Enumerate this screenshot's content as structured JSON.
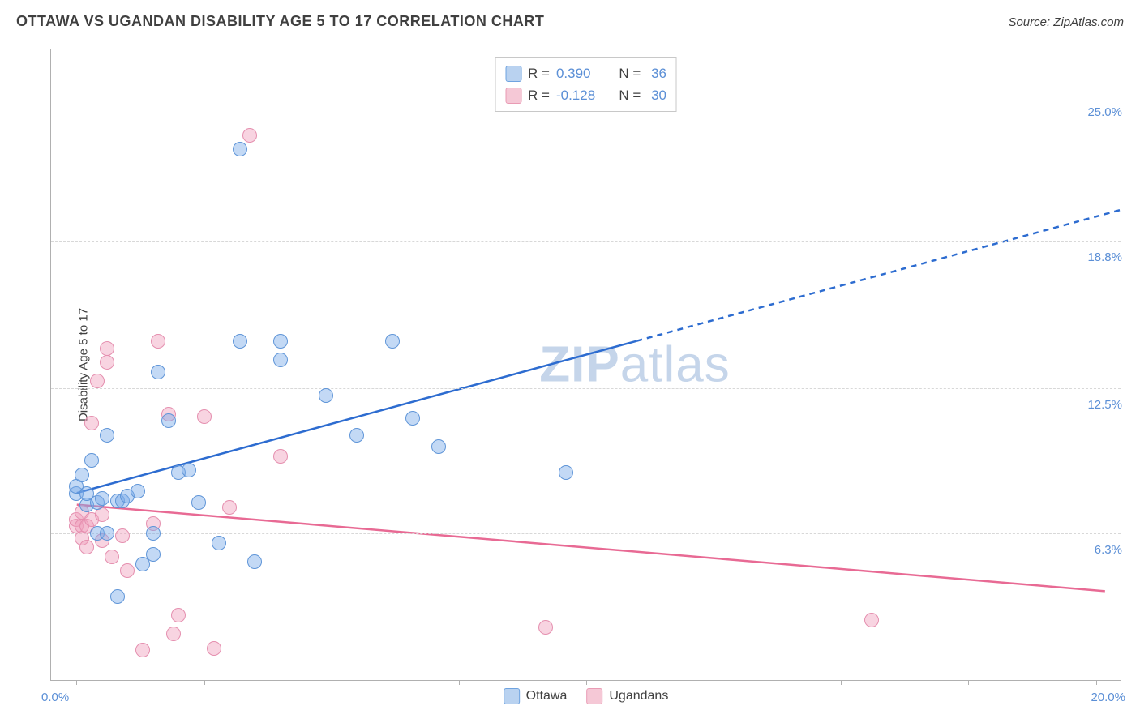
{
  "chart": {
    "title": "OTTAWA VS UGANDAN DISABILITY AGE 5 TO 17 CORRELATION CHART",
    "source": "Source: ZipAtlas.com",
    "y_axis_title": "Disability Age 5 to 17",
    "watermark_bold": "ZIP",
    "watermark_rest": "atlas",
    "title_fontsize": 18,
    "label_fontsize": 15,
    "background_color": "#ffffff",
    "grid_color": "#d8d8d8",
    "axis_color": "#b0b0b0",
    "tick_label_color": "#5b8fd6",
    "x_range": [
      -0.5,
      20.5
    ],
    "y_range": [
      0.0,
      27.0
    ],
    "x_min_label": "0.0%",
    "x_max_label": "20.0%",
    "x_tick_positions": [
      0,
      2.5,
      5,
      7.5,
      10,
      12.5,
      15,
      17.5,
      20
    ],
    "y_gridlines": [
      {
        "value": 6.3,
        "label": "6.3%"
      },
      {
        "value": 12.5,
        "label": "12.5%"
      },
      {
        "value": 18.8,
        "label": "18.8%"
      },
      {
        "value": 25.0,
        "label": "25.0%"
      }
    ],
    "trend_lines": {
      "ottawa": {
        "color": "#2d6cd0",
        "width": 2.5,
        "solid": {
          "x1": 0.0,
          "y1": 8.0,
          "x2": 11.0,
          "y2": 14.5
        },
        "dashed": {
          "x1": 11.0,
          "y1": 14.5,
          "x2": 20.5,
          "y2": 20.1
        }
      },
      "ugandans": {
        "color": "#e86a94",
        "width": 2.5,
        "solid": {
          "x1": 0.0,
          "y1": 7.5,
          "x2": 20.2,
          "y2": 3.8
        }
      }
    },
    "stats_legend": {
      "rows": [
        {
          "swatch_fill": "#b9d2f0",
          "swatch_stroke": "#6fa3e0",
          "r_label": "R =",
          "r_value": "0.390",
          "n_label": "N =",
          "n_value": "36"
        },
        {
          "swatch_fill": "#f5c8d6",
          "swatch_stroke": "#e99bb4",
          "r_label": "R =",
          "r_value": "-0.128",
          "n_label": "N =",
          "n_value": "30"
        }
      ]
    },
    "series_legend": [
      {
        "swatch_fill": "#b9d2f0",
        "swatch_stroke": "#6fa3e0",
        "label": "Ottawa"
      },
      {
        "swatch_fill": "#f5c8d6",
        "swatch_stroke": "#e99bb4",
        "label": "Ugandans"
      }
    ],
    "point_style": {
      "radius": 9,
      "stroke_width": 1.5,
      "ottawa_fill": "rgba(121,171,232,0.45)",
      "ottawa_stroke": "#5f95d8",
      "ugandans_fill": "rgba(240,160,188,0.45)",
      "ugandans_stroke": "#e58faf"
    },
    "series": {
      "ottawa": [
        [
          0.0,
          8.0
        ],
        [
          0.0,
          8.3
        ],
        [
          0.1,
          8.8
        ],
        [
          0.2,
          7.5
        ],
        [
          0.2,
          8.0
        ],
        [
          0.3,
          9.4
        ],
        [
          0.4,
          6.3
        ],
        [
          0.4,
          7.6
        ],
        [
          0.5,
          7.8
        ],
        [
          0.6,
          6.3
        ],
        [
          0.6,
          10.5
        ],
        [
          0.8,
          3.6
        ],
        [
          0.8,
          7.7
        ],
        [
          0.9,
          7.7
        ],
        [
          1.0,
          7.9
        ],
        [
          1.2,
          8.1
        ],
        [
          1.3,
          5.0
        ],
        [
          1.5,
          6.3
        ],
        [
          1.5,
          5.4
        ],
        [
          1.6,
          13.2
        ],
        [
          1.8,
          11.1
        ],
        [
          2.0,
          8.9
        ],
        [
          2.2,
          9.0
        ],
        [
          2.4,
          7.6
        ],
        [
          2.8,
          5.9
        ],
        [
          3.2,
          14.5
        ],
        [
          3.2,
          22.7
        ],
        [
          3.5,
          5.1
        ],
        [
          4.0,
          14.5
        ],
        [
          4.0,
          13.7
        ],
        [
          4.9,
          12.2
        ],
        [
          5.5,
          10.5
        ],
        [
          6.2,
          14.5
        ],
        [
          6.6,
          11.2
        ],
        [
          7.1,
          10.0
        ],
        [
          9.6,
          8.9
        ]
      ],
      "ugandans": [
        [
          0.0,
          6.6
        ],
        [
          0.0,
          6.9
        ],
        [
          0.1,
          6.1
        ],
        [
          0.1,
          6.6
        ],
        [
          0.1,
          7.2
        ],
        [
          0.2,
          5.7
        ],
        [
          0.2,
          6.6
        ],
        [
          0.3,
          11.0
        ],
        [
          0.3,
          6.9
        ],
        [
          0.4,
          12.8
        ],
        [
          0.5,
          7.1
        ],
        [
          0.5,
          6.0
        ],
        [
          0.6,
          14.2
        ],
        [
          0.6,
          13.6
        ],
        [
          0.7,
          5.3
        ],
        [
          0.9,
          6.2
        ],
        [
          1.0,
          4.7
        ],
        [
          1.3,
          1.3
        ],
        [
          1.5,
          6.7
        ],
        [
          1.6,
          14.5
        ],
        [
          1.8,
          11.4
        ],
        [
          1.9,
          2.0
        ],
        [
          2.0,
          2.8
        ],
        [
          2.5,
          11.3
        ],
        [
          2.7,
          1.4
        ],
        [
          3.0,
          7.4
        ],
        [
          3.4,
          23.3
        ],
        [
          4.0,
          9.6
        ],
        [
          9.2,
          2.3
        ],
        [
          15.6,
          2.6
        ]
      ]
    }
  }
}
